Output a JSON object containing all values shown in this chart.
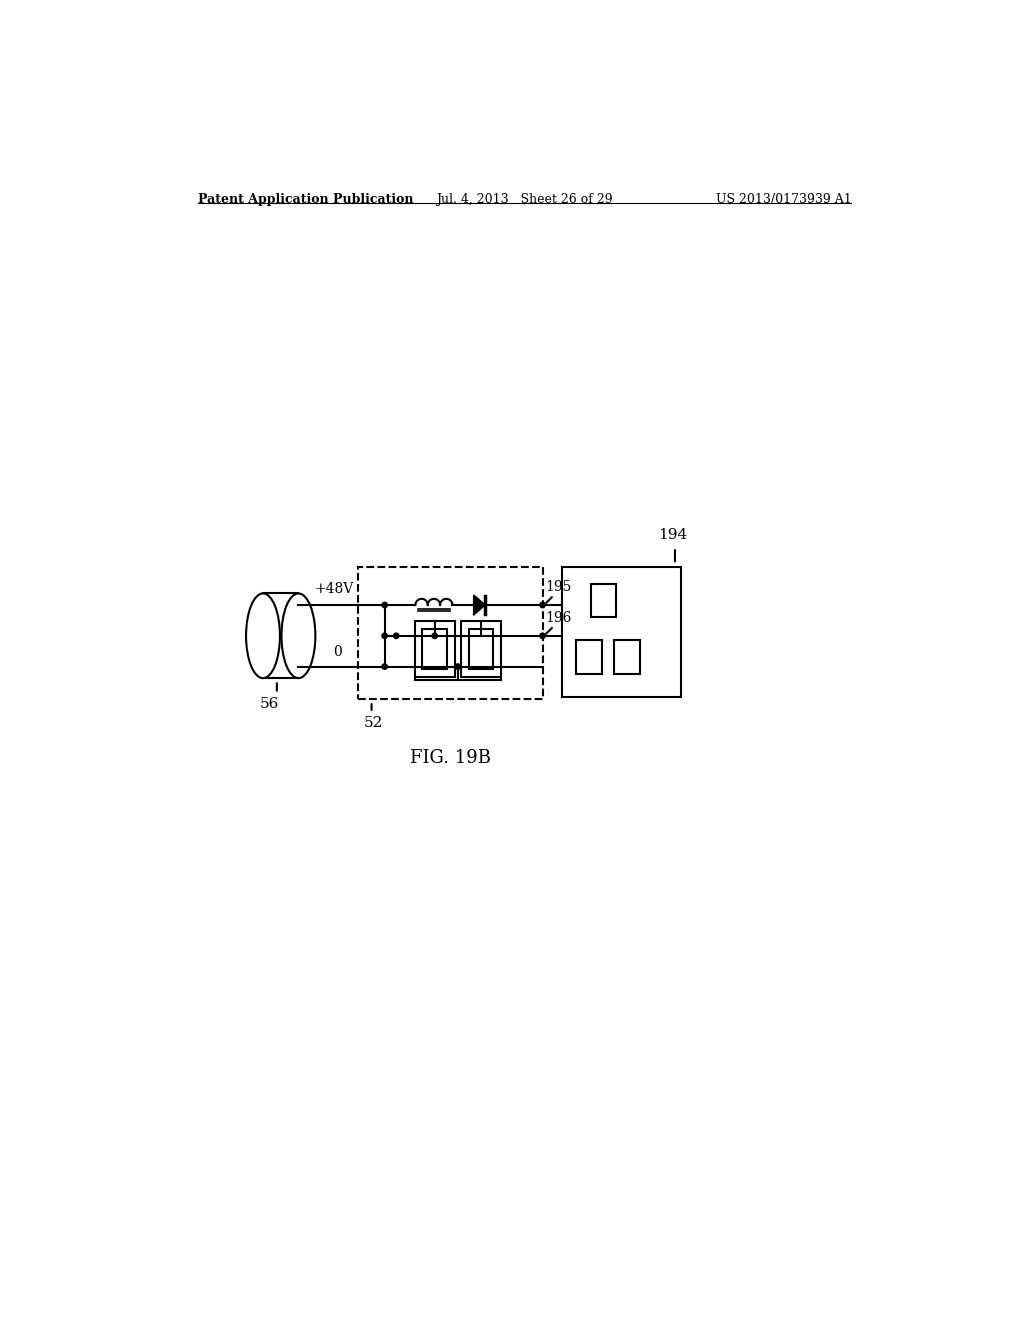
{
  "bg_color": "#ffffff",
  "header_left": "Patent Application Publication",
  "header_center": "Jul. 4, 2013   Sheet 26 of 29",
  "header_right": "US 2013/0173939 A1",
  "fig_label": "FIG. 19B",
  "label_56": "56",
  "label_52": "52",
  "label_194": "194",
  "label_195": "195",
  "label_196": "196",
  "label_48v": "+48V",
  "label_0": "0",
  "line_color": "#000000",
  "lw": 1.5
}
